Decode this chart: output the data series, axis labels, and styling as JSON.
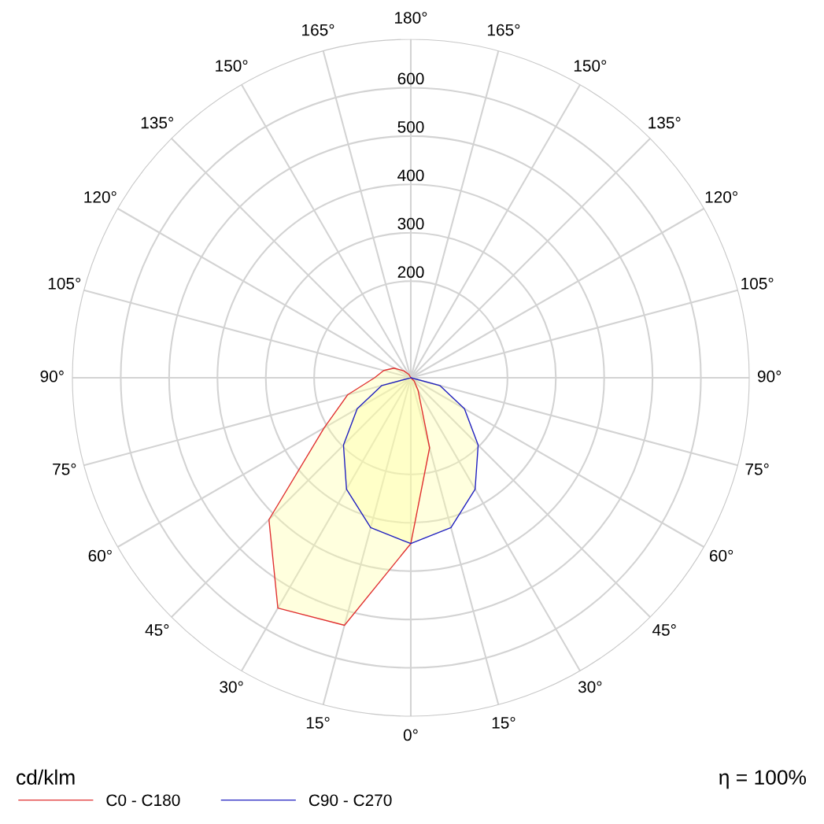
{
  "chart_data": {
    "type": "radar",
    "categories": [
      "180°",
      "165°",
      "150°",
      "135°",
      "120°",
      "105°",
      "90°",
      "75°",
      "60°",
      "45°",
      "30°",
      "15°",
      "0°",
      "15°",
      "30°",
      "45°",
      "60°",
      "75°",
      "90°",
      "105°",
      "120°",
      "135°",
      "150°",
      "165°"
    ],
    "series": [
      {
        "name": "C0 - C180",
        "color": "#e03030",
        "values": [
          0,
          0,
          0,
          0,
          0,
          0,
          0,
          0,
          0,
          10,
          30,
          150,
          343,
          530,
          550,
          415,
          207,
          135,
          75,
          58,
          40,
          20,
          8,
          0
        ]
      },
      {
        "name": "C90 - C270",
        "color": "#2020c0",
        "values": [
          0,
          0,
          0,
          0,
          0,
          0,
          0,
          62,
          128,
          197,
          266,
          321,
          343,
          321,
          266,
          197,
          128,
          62,
          0,
          0,
          0,
          0,
          0,
          0
        ]
      }
    ],
    "ylim": [
      0,
      700
    ],
    "yticks": [
      200,
      300,
      400,
      500,
      600
    ],
    "grid": true,
    "legend": "bottom",
    "annotations": [
      "cd/klm",
      "η = 100%"
    ]
  }
}
